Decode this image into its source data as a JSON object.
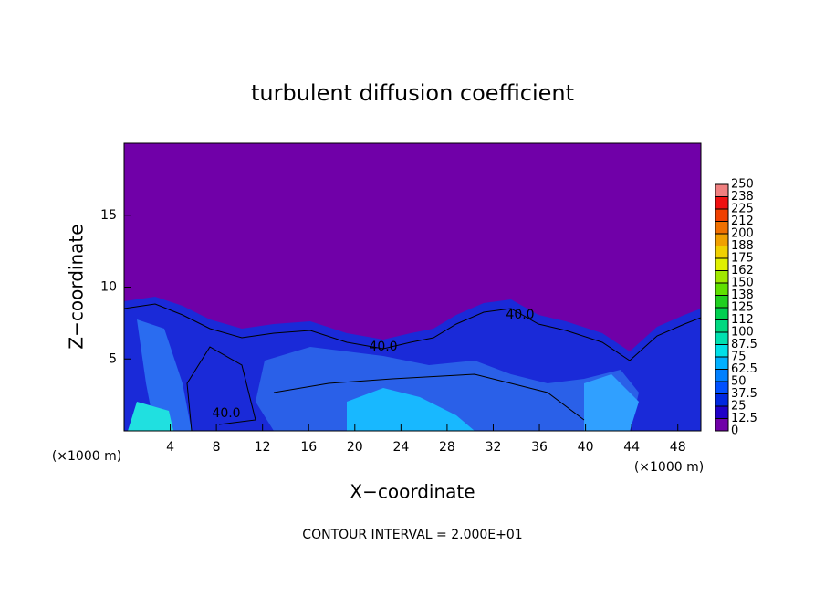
{
  "chart_data": {
    "type": "contour",
    "title": "turbulent diffusion coefficient",
    "x_label": "X−coordinate",
    "y_label": "Z−coordinate",
    "x_unit_left": "(×1000 m)",
    "x_unit_right": "(×1000 m)",
    "footer": "CONTOUR INTERVAL = 2.000E+01",
    "contour_labels": [
      "40.0",
      "40.0",
      "40.0"
    ],
    "xlim": [
      0,
      50
    ],
    "xticks": [
      4,
      8,
      12,
      16,
      20,
      24,
      28,
      32,
      36,
      40,
      44,
      48
    ],
    "ylim": [
      0,
      20
    ],
    "yticks": [
      5,
      10,
      15
    ],
    "colorbar_levels": [
      0,
      12.5,
      25,
      37.5,
      50,
      62.5,
      75,
      87.5,
      100,
      {
        "value": 112.5,
        "label": "112"
      },
      125,
      {
        "value": 137.5,
        "label": "138"
      },
      150,
      {
        "value": 162.5,
        "label": "162"
      },
      175,
      {
        "value": 187.5,
        "label": "188"
      },
      200,
      {
        "value": 212.5,
        "label": "212"
      },
      225,
      {
        "value": 237.5,
        "label": "238"
      },
      250
    ],
    "colorbar_colors": [
      "#7000a8",
      "#2000c8",
      "#0028e0",
      "#0050ff",
      "#0080ff",
      "#00b0ff",
      "#00e0e8",
      "#00e0b0",
      "#00d880",
      "#00d050",
      "#20d020",
      "#60e000",
      "#a0e800",
      "#e0f000",
      "#f0d000",
      "#f0a000",
      "#f07000",
      "#f04000",
      "#f01010",
      "#f08080"
    ]
  }
}
